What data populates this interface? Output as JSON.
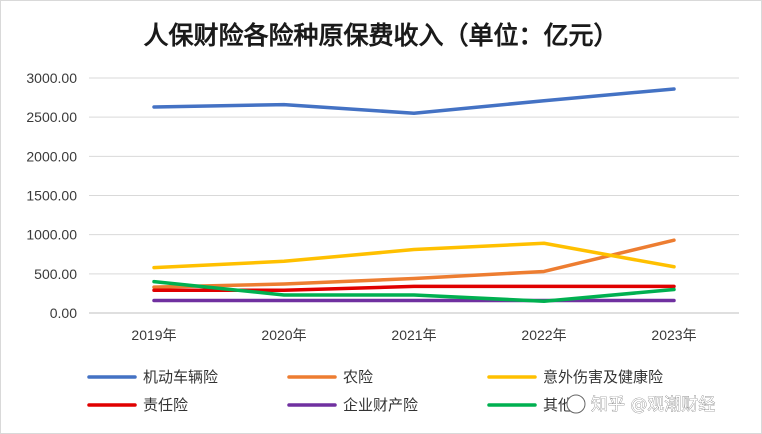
{
  "chart_data": {
    "type": "line",
    "title": "人保财险各险种原保费收入（单位：亿元）",
    "categories": [
      "2019年",
      "2020年",
      "2021年",
      "2022年",
      "2023年"
    ],
    "ylim": [
      0,
      3000
    ],
    "yticks": [
      "3000.00",
      "2500.00",
      "2000.00",
      "1500.00",
      "1000.00",
      "500.00",
      "0.00"
    ],
    "ytick_values": [
      3000,
      2500,
      2000,
      1500,
      1000,
      500,
      0
    ],
    "grid": true,
    "legend_position": "bottom",
    "series": [
      {
        "name": "机动车辆险",
        "color": "#4472C4",
        "values": [
          2630,
          2660,
          2550,
          2710,
          2860
        ]
      },
      {
        "name": "农险",
        "color": "#ED7D31",
        "values": [
          330,
          370,
          440,
          530,
          930
        ]
      },
      {
        "name": "意外伤害及健康险",
        "color": "#FFC000",
        "values": [
          580,
          660,
          810,
          890,
          590
        ]
      },
      {
        "name": "责任险",
        "color": "#E00000",
        "values": [
          290,
          290,
          340,
          340,
          340
        ]
      },
      {
        "name": "企业财产险",
        "color": "#7030A0",
        "values": [
          160,
          160,
          160,
          160,
          160
        ]
      },
      {
        "name": "其他",
        "color": "#00B050",
        "values": [
          400,
          230,
          230,
          150,
          300
        ]
      }
    ]
  },
  "watermark": "知乎 @观潮财经"
}
